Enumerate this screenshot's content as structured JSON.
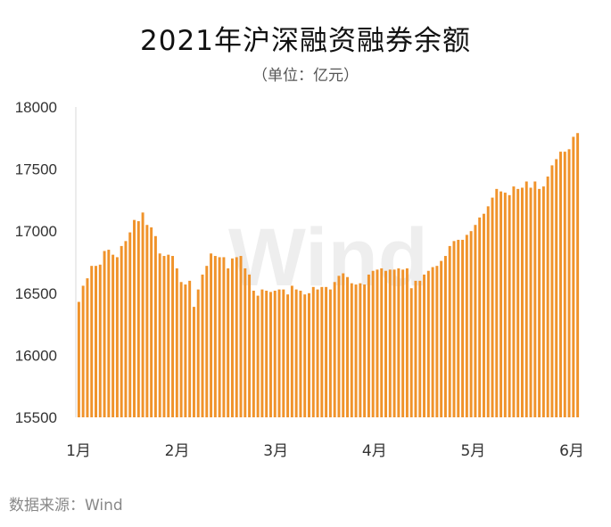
{
  "chart_data": {
    "type": "bar",
    "title": "2021年沪深融资融券余额",
    "subtitle": "（单位：亿元）",
    "source": "数据来源：Wind",
    "watermark": "Wind",
    "bar_color": "#F0932B",
    "ylim": [
      15500,
      18000
    ],
    "yticks": [
      15500,
      16000,
      16500,
      17000,
      17500,
      18000
    ],
    "x_range": [
      0,
      100
    ],
    "xticks": [
      {
        "label": "1月",
        "x": 0
      },
      {
        "label": "2月",
        "x": 20
      },
      {
        "label": "3月",
        "x": 40
      },
      {
        "label": "4月",
        "x": 60
      },
      {
        "label": "5月",
        "x": 80
      },
      {
        "label": "6月",
        "x": 100
      }
    ],
    "grid": false,
    "legend": "none",
    "values": [
      16430,
      16560,
      16620,
      16720,
      16720,
      16730,
      16840,
      16850,
      16810,
      16790,
      16880,
      16920,
      16990,
      17090,
      17080,
      17150,
      17050,
      17030,
      16960,
      16820,
      16800,
      16810,
      16800,
      16700,
      16590,
      16570,
      16600,
      16390,
      16530,
      16650,
      16720,
      16820,
      16800,
      16790,
      16790,
      16700,
      16780,
      16790,
      16800,
      16700,
      16650,
      16520,
      16480,
      16530,
      16520,
      16510,
      16520,
      16530,
      16530,
      16490,
      16560,
      16530,
      16520,
      16490,
      16500,
      16550,
      16530,
      16550,
      16550,
      16530,
      16590,
      16640,
      16660,
      16630,
      16580,
      16570,
      16580,
      16570,
      16650,
      16680,
      16690,
      16700,
      16680,
      16690,
      16690,
      16700,
      16690,
      16700,
      16540,
      16600,
      16600,
      16650,
      16680,
      16710,
      16720,
      16760,
      16800,
      16880,
      16920,
      16930,
      16930,
      16970,
      17000,
      17050,
      17110,
      17140,
      17200,
      17270,
      17340,
      17320,
      17310,
      17290,
      17360,
      17340,
      17350,
      17400,
      17350,
      17400,
      17340,
      17360,
      17440,
      17530,
      17580,
      17640,
      17640,
      17660,
      17760,
      17790
    ]
  }
}
